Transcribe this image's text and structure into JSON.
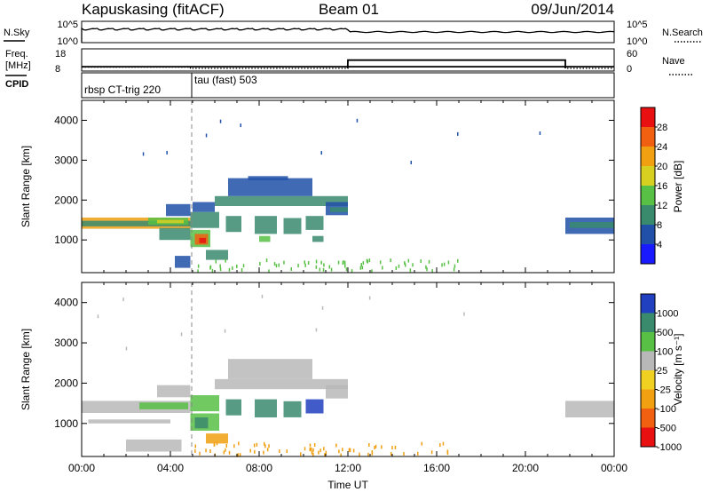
{
  "header": {
    "radar": "Kapuskasing (fitACF)",
    "beam": "Beam 01",
    "date": "09/Jun/2014"
  },
  "aux": {
    "nsky_label": "N.Sky",
    "nsearch_label": "N.Search",
    "freq_label_line1": "Freq.",
    "freq_label_line2": "[MHz]",
    "nave_label": "Nave",
    "cpid_label": "CPID",
    "sky_ticks": [
      "10^5",
      "10^0"
    ],
    "freq_ticks": [
      "18",
      "8"
    ],
    "nave_ticks": [
      "60",
      "0"
    ],
    "cpid_segments": [
      {
        "label": "rbsp CT-trig 220",
        "start_hour": 0.0,
        "end_hour": 4.9
      },
      {
        "label": "tau (fast) 503",
        "start_hour": 4.9,
        "end_hour": 24.0
      }
    ],
    "freq_values": [
      {
        "start_hour": 0.0,
        "end_hour": 4.9,
        "mhz": 10.2
      },
      {
        "start_hour": 4.9,
        "end_hour": 24.0,
        "mhz": 10.2
      }
    ],
    "nave_values": [
      {
        "start_hour": 0.0,
        "end_hour": 4.9,
        "value": 4
      },
      {
        "start_hour": 4.9,
        "end_hour": 12.0,
        "value": 0
      },
      {
        "start_hour": 12.0,
        "end_hour": 21.8,
        "value": 28
      },
      {
        "start_hour": 21.8,
        "end_hour": 24.0,
        "value": 0
      }
    ]
  },
  "chart_data": [
    {
      "type": "heatmap",
      "name": "power",
      "ylabel": "Slant Range [km]",
      "colorbar_label": "Power [dB]",
      "y_ticks": [
        1000,
        2000,
        3000,
        4000
      ],
      "ylim": [
        180,
        4500
      ],
      "xlim": [
        0,
        24
      ],
      "colorbar_ticks": [
        "28",
        "24",
        "20",
        "16",
        "12",
        "8",
        "4"
      ],
      "colors": [
        "#1a1aff",
        "#2050a8",
        "#3a8a6e",
        "#58c045",
        "#d8d020",
        "#f0a010",
        "#f06010",
        "#e81010"
      ],
      "data_rects": [
        {
          "x0": 0.0,
          "x1": 4.9,
          "r0": 1280,
          "r1": 1560,
          "c": 5
        },
        {
          "x0": 0.0,
          "x1": 4.9,
          "r0": 1340,
          "r1": 1480,
          "c": 2
        },
        {
          "x0": 3.0,
          "x1": 4.8,
          "r0": 1380,
          "r1": 1560,
          "c": 3
        },
        {
          "x0": 3.4,
          "x1": 4.6,
          "r0": 1420,
          "r1": 1500,
          "c": 4
        },
        {
          "x0": 3.5,
          "x1": 4.9,
          "r0": 1000,
          "r1": 1300,
          "c": 2
        },
        {
          "x0": 3.8,
          "x1": 4.9,
          "r0": 1600,
          "r1": 1900,
          "c": 1
        },
        {
          "x0": 4.9,
          "x1": 5.8,
          "r0": 820,
          "r1": 1250,
          "c": 3
        },
        {
          "x0": 5.1,
          "x1": 5.7,
          "r0": 880,
          "r1": 1150,
          "c": 6
        },
        {
          "x0": 5.3,
          "x1": 5.6,
          "r0": 920,
          "r1": 1050,
          "c": 7
        },
        {
          "x0": 4.9,
          "x1": 6.2,
          "r0": 1300,
          "r1": 1700,
          "c": 2
        },
        {
          "x0": 5.0,
          "x1": 6.0,
          "r0": 1700,
          "r1": 1950,
          "c": 1
        },
        {
          "x0": 6.0,
          "x1": 12.0,
          "r0": 1850,
          "r1": 2100,
          "c": 2
        },
        {
          "x0": 6.6,
          "x1": 10.4,
          "r0": 2100,
          "r1": 2550,
          "c": 1
        },
        {
          "x0": 7.5,
          "x1": 9.3,
          "r0": 2500,
          "r1": 2600,
          "c": 1
        },
        {
          "x0": 6.5,
          "x1": 7.2,
          "r0": 1200,
          "r1": 1600,
          "c": 2
        },
        {
          "x0": 7.8,
          "x1": 8.8,
          "r0": 1150,
          "r1": 1600,
          "c": 2
        },
        {
          "x0": 8.0,
          "x1": 8.5,
          "r0": 950,
          "r1": 1100,
          "c": 3
        },
        {
          "x0": 9.1,
          "x1": 9.9,
          "r0": 1150,
          "r1": 1550,
          "c": 2
        },
        {
          "x0": 10.1,
          "x1": 10.9,
          "r0": 1250,
          "r1": 1600,
          "c": 2
        },
        {
          "x0": 10.4,
          "x1": 10.9,
          "r0": 950,
          "r1": 1100,
          "c": 2
        },
        {
          "x0": 11.0,
          "x1": 12.0,
          "r0": 1620,
          "r1": 1950,
          "c": 1
        },
        {
          "x0": 11.2,
          "x1": 12.0,
          "r0": 1700,
          "r1": 1820,
          "c": 2
        },
        {
          "x0": 5.6,
          "x1": 6.6,
          "r0": 500,
          "r1": 750,
          "c": 2
        },
        {
          "x0": 4.2,
          "x1": 4.9,
          "r0": 300,
          "r1": 600,
          "c": 1
        },
        {
          "x0": 21.8,
          "x1": 24.0,
          "r0": 1150,
          "r1": 1560,
          "c": 1
        },
        {
          "x0": 22.0,
          "x1": 24.0,
          "r0": 1300,
          "r1": 1450,
          "c": 2
        }
      ]
    },
    {
      "type": "heatmap",
      "name": "velocity",
      "ylabel": "Slant Range [km]",
      "colorbar_label": "Velocity [m s⁻¹]",
      "xlabel": "Time UT",
      "x_ticks": [
        "00:00",
        "04:00",
        "08:00",
        "12:00",
        "16:00",
        "20:00",
        "00:00"
      ],
      "y_ticks": [
        1000,
        2000,
        3000,
        4000
      ],
      "ylim": [
        180,
        4500
      ],
      "xlim": [
        0,
        24
      ],
      "colorbar_ticks": [
        "1000",
        "500",
        "100",
        "25",
        "-25",
        "-100",
        "-500",
        "-1000"
      ],
      "colors": [
        "#2040c0",
        "#3a8a6e",
        "#58c045",
        "#b8b8b8",
        "#f0d020",
        "#f0a010",
        "#f06010",
        "#e81010"
      ],
      "data_rects": [
        {
          "x0": 0.0,
          "x1": 4.9,
          "r0": 1260,
          "r1": 1560,
          "c": 3
        },
        {
          "x0": 0.3,
          "x1": 4.0,
          "r0": 1000,
          "r1": 1100,
          "c": 3
        },
        {
          "x0": 2.6,
          "x1": 4.8,
          "r0": 1350,
          "r1": 1520,
          "c": 2
        },
        {
          "x0": 3.4,
          "x1": 4.9,
          "r0": 1650,
          "r1": 1950,
          "c": 3
        },
        {
          "x0": 4.9,
          "x1": 6.2,
          "r0": 820,
          "r1": 1250,
          "c": 2
        },
        {
          "x0": 5.1,
          "x1": 5.7,
          "r0": 880,
          "r1": 1150,
          "c": 1
        },
        {
          "x0": 4.9,
          "x1": 6.2,
          "r0": 1300,
          "r1": 1700,
          "c": 2
        },
        {
          "x0": 6.0,
          "x1": 12.0,
          "r0": 1850,
          "r1": 2100,
          "c": 3
        },
        {
          "x0": 6.6,
          "x1": 10.4,
          "r0": 2100,
          "r1": 2600,
          "c": 3
        },
        {
          "x0": 6.5,
          "x1": 7.2,
          "r0": 1200,
          "r1": 1600,
          "c": 1
        },
        {
          "x0": 7.8,
          "x1": 8.8,
          "r0": 1150,
          "r1": 1600,
          "c": 1
        },
        {
          "x0": 9.1,
          "x1": 9.9,
          "r0": 1150,
          "r1": 1550,
          "c": 1
        },
        {
          "x0": 10.1,
          "x1": 10.9,
          "r0": 1250,
          "r1": 1600,
          "c": 0
        },
        {
          "x0": 11.0,
          "x1": 12.0,
          "r0": 1620,
          "r1": 1950,
          "c": 3
        },
        {
          "x0": 5.6,
          "x1": 6.6,
          "r0": 500,
          "r1": 750,
          "c": 5
        },
        {
          "x0": 2.0,
          "x1": 4.5,
          "r0": 300,
          "r1": 600,
          "c": 3
        },
        {
          "x0": 21.8,
          "x1": 24.0,
          "r0": 1150,
          "r1": 1560,
          "c": 3
        }
      ]
    }
  ]
}
